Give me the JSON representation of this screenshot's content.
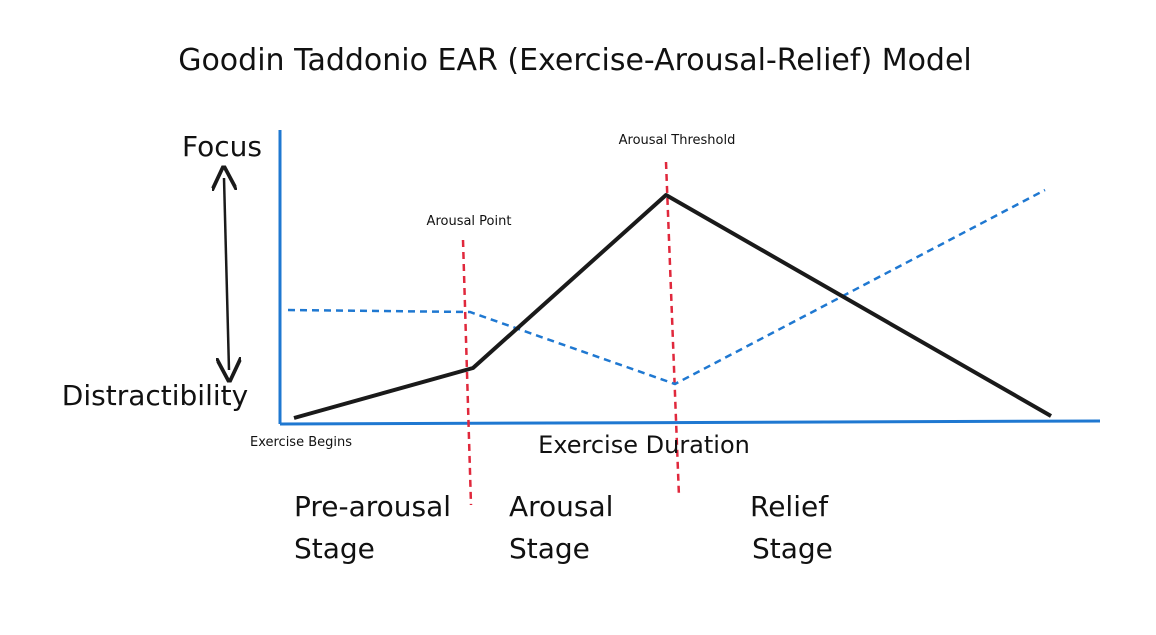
{
  "title": "Goodin Taddonio EAR (Exercise-Arousal-Relief) Model",
  "y_axis": {
    "top_label": "Focus",
    "bottom_label": "Distractibility"
  },
  "x_axis": {
    "label": "Exercise Duration",
    "start_label": "Exercise Begins"
  },
  "markers": {
    "arousal_point": "Arousal Point",
    "arousal_threshold": "Arousal Threshold"
  },
  "stages": {
    "pre_arousal": {
      "line1": "Pre-arousal",
      "line2": "Stage"
    },
    "arousal": {
      "line1": "Arousal",
      "line2": "Stage"
    },
    "relief": {
      "line1": "Relief",
      "line2": "Stage"
    }
  },
  "colors": {
    "axis": "#1f78d1",
    "focus_line": "#1a1a1a",
    "distractibility_line": "#1f78d1",
    "marker": "#e0283c",
    "text": "#111111"
  }
}
